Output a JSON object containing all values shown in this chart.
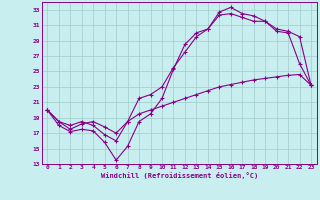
{
  "xlabel": "Windchill (Refroidissement éolien,°C)",
  "background_color": "#c8eef0",
  "grid_color": "#a0cccc",
  "line_color": "#880088",
  "spine_color": "#880088",
  "xlim": [
    -0.5,
    23.5
  ],
  "ylim": [
    13,
    34
  ],
  "xticks": [
    0,
    1,
    2,
    3,
    4,
    5,
    6,
    7,
    8,
    9,
    10,
    11,
    12,
    13,
    14,
    15,
    16,
    17,
    18,
    19,
    20,
    21,
    22,
    23
  ],
  "yticks": [
    13,
    15,
    17,
    19,
    21,
    23,
    25,
    27,
    29,
    31,
    33
  ],
  "line1_x": [
    0,
    1,
    2,
    3,
    4,
    5,
    6,
    7,
    8,
    9,
    10,
    11,
    12,
    13,
    14,
    15,
    16,
    17,
    18,
    19,
    20,
    21,
    22,
    23
  ],
  "line1_y": [
    20.0,
    18.0,
    17.2,
    17.5,
    17.3,
    15.8,
    13.5,
    15.3,
    18.5,
    19.5,
    21.5,
    25.3,
    28.5,
    30.0,
    30.5,
    32.7,
    33.3,
    32.5,
    32.2,
    31.5,
    30.2,
    30.0,
    26.0,
    23.2
  ],
  "line2_x": [
    0,
    1,
    2,
    3,
    4,
    5,
    6,
    7,
    8,
    9,
    10,
    11,
    12,
    13,
    14,
    15,
    16,
    17,
    18,
    19,
    20,
    21,
    22,
    23
  ],
  "line2_y": [
    20.0,
    18.5,
    18.0,
    18.5,
    18.0,
    16.8,
    16.0,
    18.5,
    21.5,
    22.0,
    23.0,
    25.5,
    27.5,
    29.5,
    30.5,
    32.3,
    32.5,
    32.0,
    31.5,
    31.5,
    30.5,
    30.2,
    29.5,
    23.2
  ],
  "line3_x": [
    0,
    1,
    2,
    3,
    4,
    5,
    6,
    7,
    8,
    9,
    10,
    11,
    12,
    13,
    14,
    15,
    16,
    17,
    18,
    19,
    20,
    21,
    22,
    23
  ],
  "line3_y": [
    20.0,
    18.5,
    17.5,
    18.2,
    18.5,
    17.8,
    17.0,
    18.5,
    19.5,
    20.0,
    20.5,
    21.0,
    21.5,
    22.0,
    22.5,
    23.0,
    23.3,
    23.6,
    23.9,
    24.1,
    24.3,
    24.5,
    24.6,
    23.2
  ],
  "tick_fontsize": 4.5,
  "xlabel_fontsize": 5.0
}
